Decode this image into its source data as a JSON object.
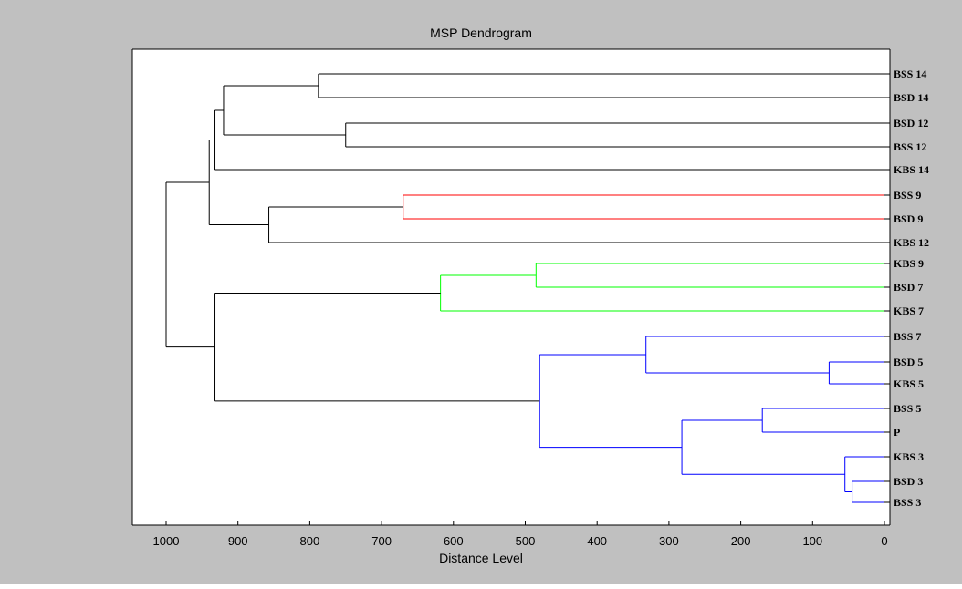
{
  "chart_data": {
    "type": "dendrogram",
    "title": "MSP Dendrogram",
    "xlabel": "Distance Level",
    "ylabel": "",
    "xlim": [
      1050,
      0
    ],
    "x_reversed": true,
    "x_ticks": [
      1000,
      900,
      800,
      700,
      600,
      500,
      400,
      300,
      200,
      100,
      0
    ],
    "grid": false,
    "colors": {
      "frame": "#c0c0c0",
      "axes_bg": "#ffffff",
      "default_link": "#000000",
      "red_cluster": "#ff0000",
      "green_cluster": "#00ff00",
      "blue_cluster": "#0000ff"
    },
    "leaves": [
      "BSS 14",
      "BSD 14",
      "BSD 12",
      "BSS 12",
      "KBS 14",
      "BSS 9",
      "BSD 9",
      "KBS 12",
      "KBS 9",
      "BSD 7",
      "KBS 7",
      "BSS 7",
      "BSD 5",
      "KBS 5",
      "BSS 5",
      "P",
      "KBS 3",
      "BSD 3",
      "BSS 3"
    ],
    "merges": [
      {
        "children": [
          "BSD 3",
          "BSS 3"
        ],
        "distance": 45,
        "color": "#0000ff"
      },
      {
        "children": [
          "KBS 3",
          "(BSD 3,BSS 3)"
        ],
        "distance": 55,
        "color": "#0000ff"
      },
      {
        "children": [
          "BSD 5",
          "KBS 5"
        ],
        "distance": 77,
        "color": "#0000ff"
      },
      {
        "children": [
          "BSS 5",
          "P"
        ],
        "distance": 170,
        "color": "#0000ff"
      },
      {
        "children": [
          "(BSS 5,P)",
          "(KBS 3,BSD 3,BSS 3)"
        ],
        "distance": 282,
        "color": "#0000ff"
      },
      {
        "children": [
          "BSS 7",
          "(BSD 5,KBS 5)"
        ],
        "distance": 332,
        "color": "#0000ff"
      },
      {
        "children": [
          "(BSS 7,BSD 5,KBS 5)",
          "(BSS 5,P,KBS 3,BSD 3,BSS 3)"
        ],
        "distance": 480,
        "color": "#0000ff"
      },
      {
        "children": [
          "KBS 9",
          "BSD 7"
        ],
        "distance": 485,
        "color": "#00ff00"
      },
      {
        "children": [
          "(KBS 9,BSD 7)",
          "KBS 7"
        ],
        "distance": 618,
        "color": "#00ff00"
      },
      {
        "children": [
          "BSS 9",
          "BSD 9"
        ],
        "distance": 670,
        "color": "#ff0000"
      },
      {
        "children": [
          "BSD 12",
          "BSS 12"
        ],
        "distance": 750,
        "color": "#000000"
      },
      {
        "children": [
          "BSS 14",
          "BSD 14"
        ],
        "distance": 788,
        "color": "#000000"
      },
      {
        "children": [
          "(BSS 9,BSD 9)",
          "KBS 12"
        ],
        "distance": 857,
        "color": "#000000"
      },
      {
        "children": [
          "(BSS 14,BSD 14)",
          "(BSD 12,BSS 12)"
        ],
        "distance": 920,
        "color": "#000000"
      },
      {
        "children": [
          "(BSS 14,BSD 14,BSD 12,BSS 12)",
          "KBS 14"
        ],
        "distance": 932,
        "color": "#000000"
      },
      {
        "children": [
          "(KBS 9,BSD 7,KBS 7)",
          "(BSS 7,...,BSS 3)"
        ],
        "distance": 932,
        "color": "#000000"
      },
      {
        "children": [
          "(BSS 14,...,KBS 14)",
          "(BSS 9,BSD 9,KBS 12)"
        ],
        "distance": 940,
        "color": "#000000"
      },
      {
        "children": [
          "(BSS 14,...,KBS 12)",
          "(KBS 9,...,BSS 3)"
        ],
        "distance": 1000,
        "color": "#000000"
      }
    ]
  }
}
